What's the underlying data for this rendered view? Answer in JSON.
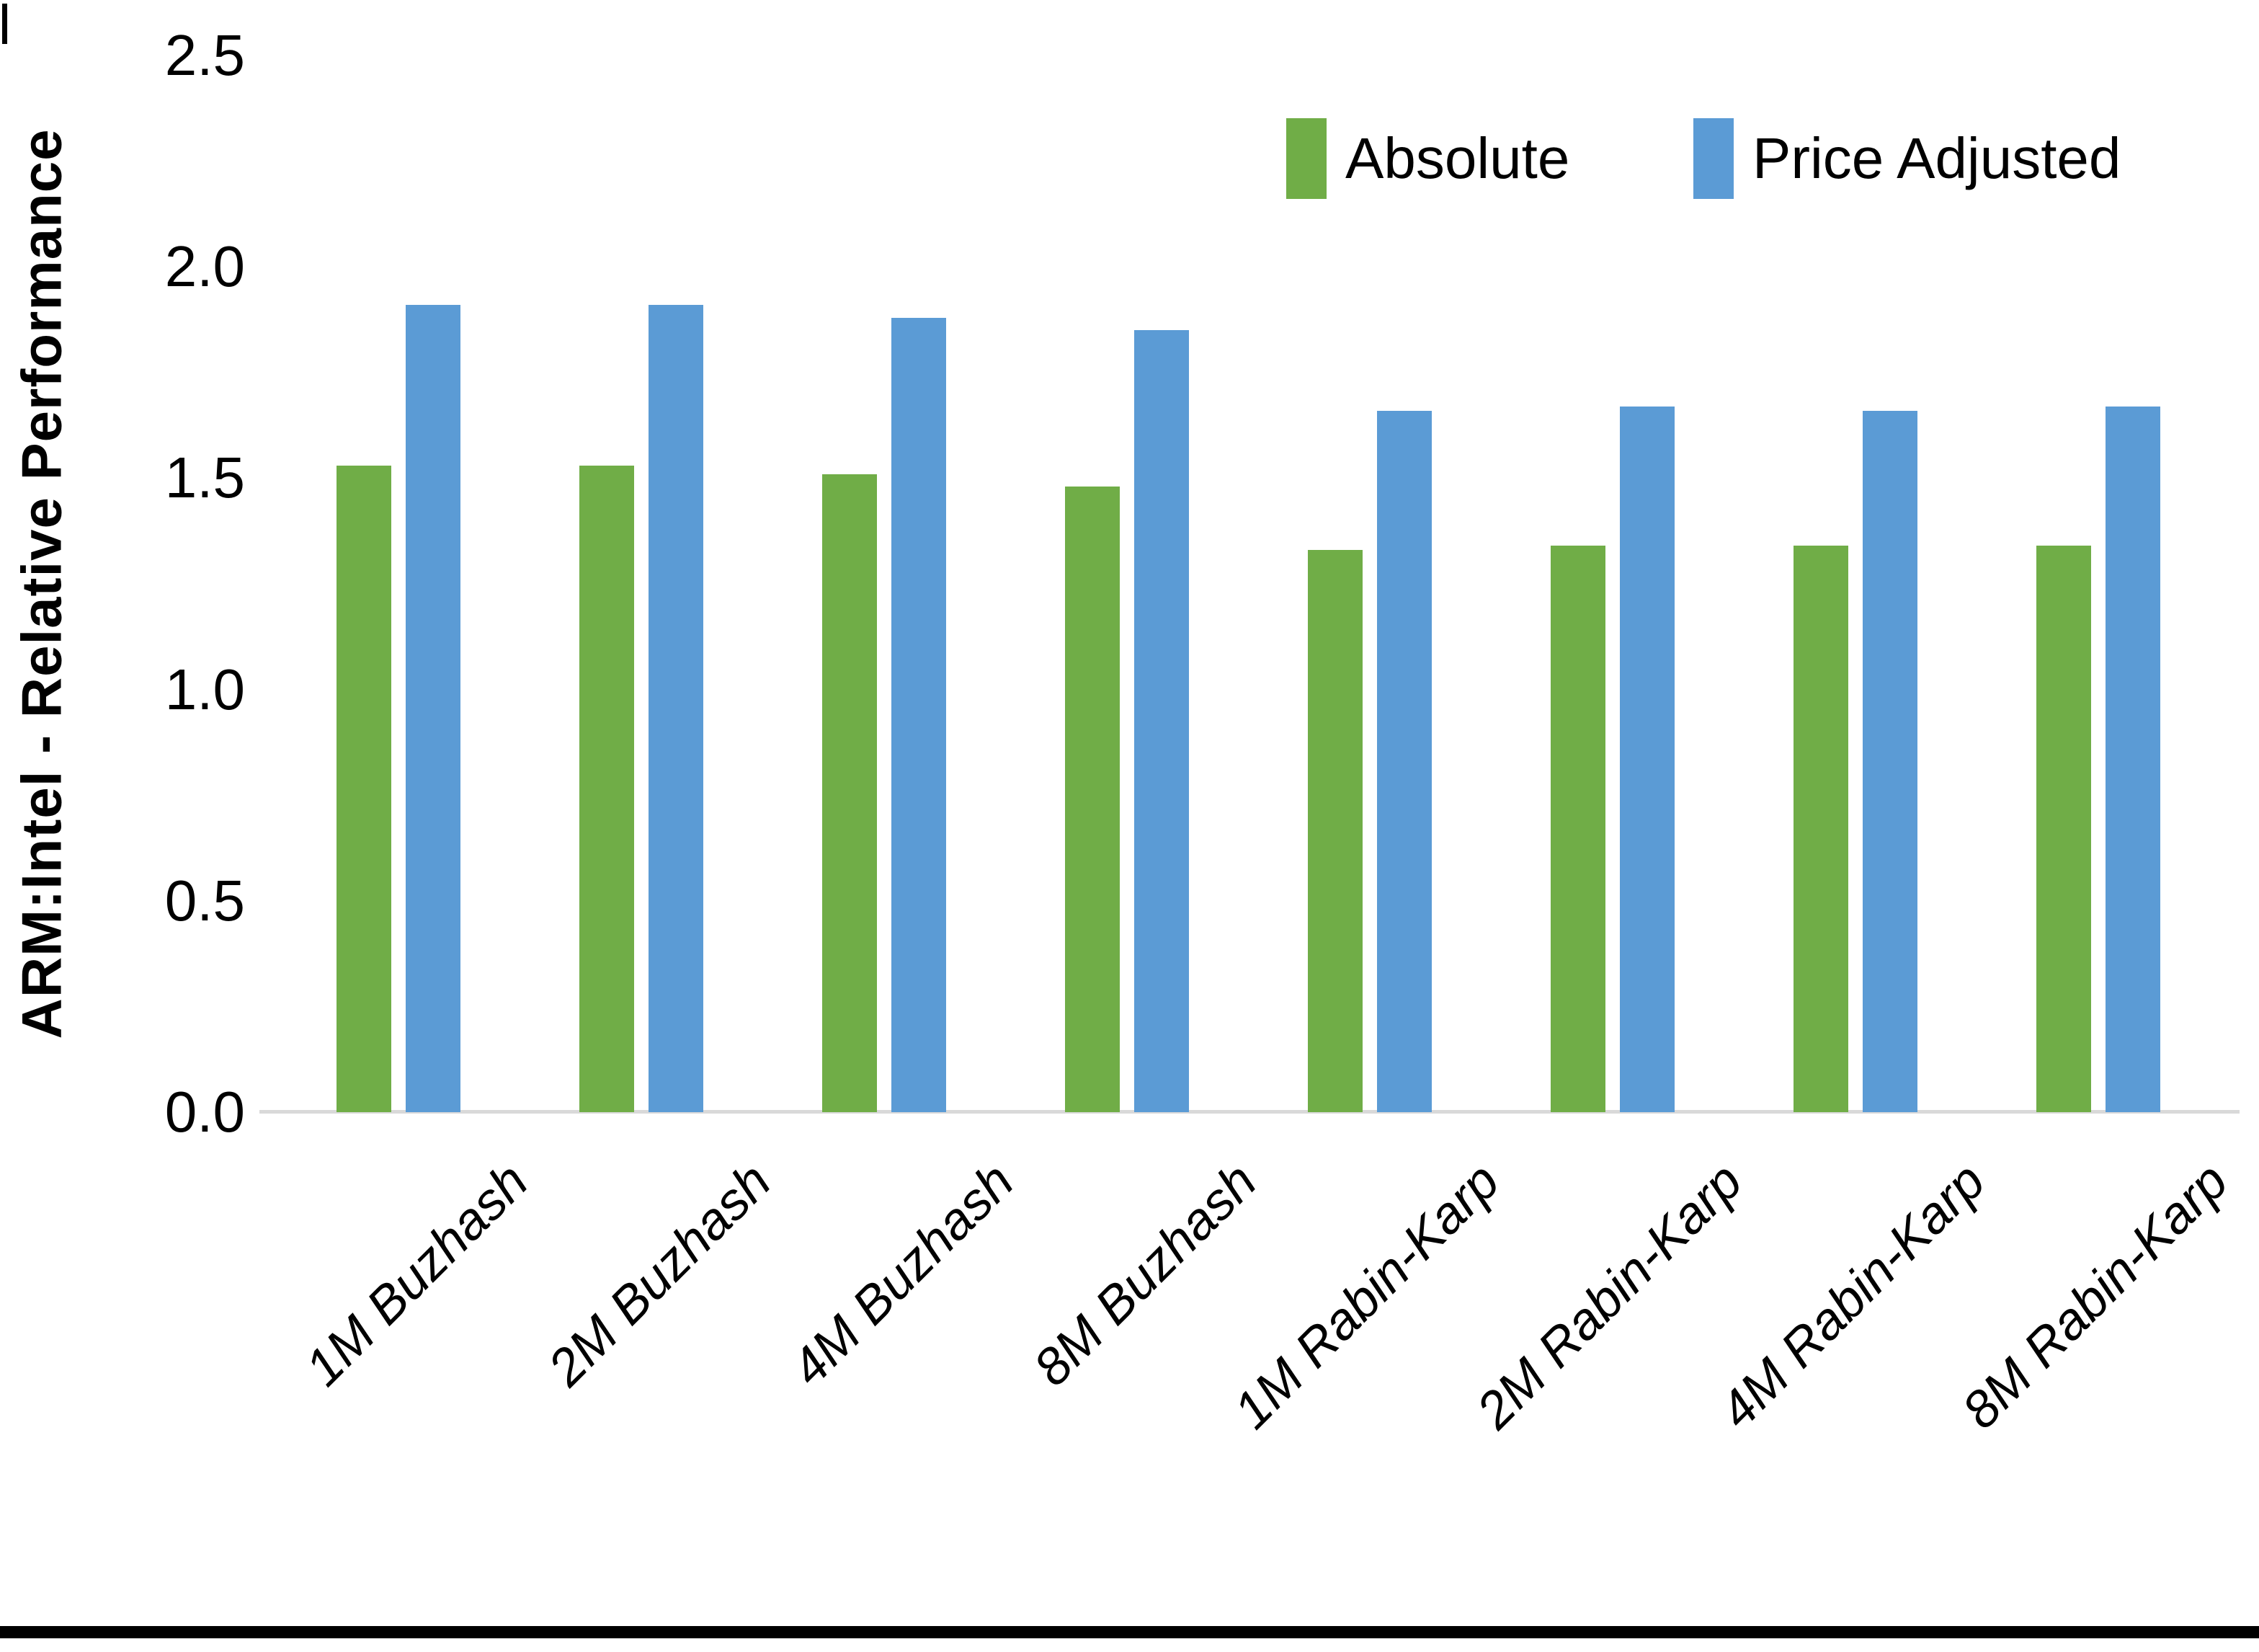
{
  "chart_data": {
    "type": "bar",
    "title": "",
    "ylabel": "ARM:Intel - Relative Performance",
    "xlabel": "",
    "ylim": [
      0.0,
      2.5
    ],
    "ytick_labels": [
      "0.0",
      "0.5",
      "1.0",
      "1.5",
      "2.0",
      "2.5"
    ],
    "grid": false,
    "legend_position": "top-right-inside",
    "categories": [
      "1M Buzhash",
      "2M Buzhash",
      "4M Buzhash",
      "8M Buzhash",
      "1M Rabin-Karp",
      "2M Rabin-Karp",
      "4M Rabin-Karp",
      "8M Rabin-Karp"
    ],
    "series": [
      {
        "name": "Absolute",
        "color": "#70AD47",
        "values": [
          1.53,
          1.53,
          1.51,
          1.48,
          1.33,
          1.34,
          1.34,
          1.34
        ]
      },
      {
        "name": "Price Adjusted",
        "color": "#5B9BD5",
        "values": [
          1.91,
          1.91,
          1.88,
          1.85,
          1.66,
          1.67,
          1.66,
          1.67
        ]
      }
    ]
  },
  "colors": {
    "axis_line": "#D9D9D9",
    "text": "#000000",
    "figure_border": "#000000",
    "background": "#FFFFFF"
  }
}
